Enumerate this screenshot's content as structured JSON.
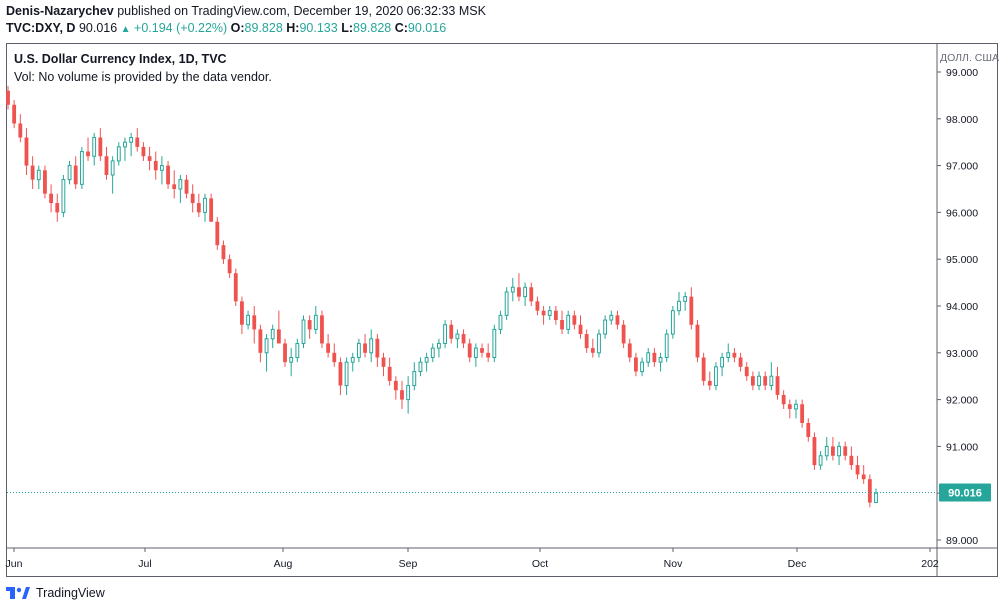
{
  "header": {
    "author": "Denis-Nazarychev",
    "published": "published on TradingView.com, December 19, 2020 06:32:33 MSK",
    "symbol": "TVC:DXY, D",
    "last": "90.016",
    "arrow": "▲",
    "change": "+0.194 (+0.22%)",
    "o_label": "O:",
    "o_value": "89.828",
    "h_label": "H:",
    "h_value": "90.133",
    "l_label": "L:",
    "l_value": "89.828",
    "c_label": "C:",
    "c_value": "90.016"
  },
  "legend": {
    "title": "U.S. Dollar Currency Index, 1D, TVC",
    "volume_note": "Vol: No volume is provided by the data vendor."
  },
  "axis_unit": "ДОЛЛ. США",
  "footer": {
    "brand": "TradingView"
  },
  "colors": {
    "up": "#26a69a",
    "down": "#ef5350",
    "price_line": "#26a69a",
    "label_bg": "#26a69a"
  },
  "chart_data": {
    "type": "candlestick",
    "title": "U.S. Dollar Currency Index, 1D, TVC",
    "ylim": [
      88.9,
      99.4
    ],
    "y_ticks": [
      "89.000",
      "90.000",
      "91.000",
      "92.000",
      "93.000",
      "94.000",
      "95.000",
      "96.000",
      "97.000",
      "98.000",
      "99.000"
    ],
    "x_labels": [
      "Jun",
      "Jul",
      "Aug",
      "Sep",
      "Oct",
      "Nov",
      "Dec",
      "202"
    ],
    "last_price": 90.016,
    "last_price_label": "90.016",
    "ohlc": [
      [
        98.6,
        98.7,
        98.2,
        98.3
      ],
      [
        98.3,
        98.4,
        97.8,
        97.9
      ],
      [
        97.9,
        98.1,
        97.5,
        97.6
      ],
      [
        97.6,
        97.8,
        96.8,
        97.0
      ],
      [
        97.0,
        97.2,
        96.5,
        96.7
      ],
      [
        96.7,
        97.0,
        96.5,
        96.9
      ],
      [
        96.9,
        97.0,
        96.3,
        96.4
      ],
      [
        96.4,
        96.6,
        96.0,
        96.2
      ],
      [
        96.2,
        96.4,
        95.8,
        96.0
      ],
      [
        96.0,
        96.8,
        95.9,
        96.7
      ],
      [
        96.7,
        97.1,
        96.6,
        97.0
      ],
      [
        97.0,
        97.2,
        96.5,
        96.6
      ],
      [
        96.6,
        97.4,
        96.5,
        97.3
      ],
      [
        97.3,
        97.6,
        97.1,
        97.2
      ],
      [
        97.2,
        97.7,
        97.0,
        97.6
      ],
      [
        97.6,
        97.8,
        97.1,
        97.2
      ],
      [
        97.2,
        97.4,
        96.7,
        96.8
      ],
      [
        96.8,
        97.2,
        96.4,
        97.1
      ],
      [
        97.1,
        97.5,
        97.0,
        97.4
      ],
      [
        97.4,
        97.6,
        97.1,
        97.5
      ],
      [
        97.5,
        97.7,
        97.2,
        97.6
      ],
      [
        97.6,
        97.8,
        97.3,
        97.4
      ],
      [
        97.4,
        97.5,
        97.1,
        97.2
      ],
      [
        97.2,
        97.4,
        96.9,
        97.1
      ],
      [
        97.1,
        97.3,
        96.7,
        96.9
      ],
      [
        96.9,
        97.2,
        96.6,
        97.0
      ],
      [
        97.0,
        97.1,
        96.5,
        96.6
      ],
      [
        96.6,
        96.9,
        96.3,
        96.5
      ],
      [
        96.5,
        96.8,
        96.2,
        96.7
      ],
      [
        96.7,
        96.8,
        96.3,
        96.4
      ],
      [
        96.4,
        96.6,
        96.0,
        96.2
      ],
      [
        96.2,
        96.4,
        95.9,
        96.0
      ],
      [
        96.0,
        96.4,
        95.8,
        96.3
      ],
      [
        96.3,
        96.4,
        95.8,
        95.8
      ],
      [
        95.8,
        95.9,
        95.2,
        95.3
      ],
      [
        95.3,
        95.4,
        94.9,
        95.0
      ],
      [
        95.0,
        95.1,
        94.6,
        94.7
      ],
      [
        94.7,
        94.8,
        94.0,
        94.1
      ],
      [
        94.1,
        94.2,
        93.4,
        93.6
      ],
      [
        93.6,
        93.9,
        93.5,
        93.8
      ],
      [
        93.8,
        94.0,
        93.2,
        93.5
      ],
      [
        93.5,
        93.6,
        92.8,
        93.0
      ],
      [
        93.0,
        93.4,
        92.6,
        93.3
      ],
      [
        93.3,
        93.6,
        93.1,
        93.5
      ],
      [
        93.5,
        93.9,
        93.2,
        93.2
      ],
      [
        93.2,
        93.3,
        92.7,
        92.8
      ],
      [
        92.8,
        93.1,
        92.5,
        92.9
      ],
      [
        92.9,
        93.3,
        92.8,
        93.2
      ],
      [
        93.2,
        93.8,
        93.1,
        93.7
      ],
      [
        93.7,
        93.8,
        93.3,
        93.5
      ],
      [
        93.5,
        94.0,
        93.4,
        93.8
      ],
      [
        93.8,
        93.9,
        93.1,
        93.2
      ],
      [
        93.2,
        93.4,
        92.9,
        93.0
      ],
      [
        93.0,
        93.2,
        92.7,
        92.8
      ],
      [
        92.8,
        92.9,
        92.1,
        92.3
      ],
      [
        92.3,
        92.9,
        92.1,
        92.8
      ],
      [
        92.8,
        93.0,
        92.6,
        92.9
      ],
      [
        92.9,
        93.3,
        92.8,
        93.2
      ],
      [
        93.2,
        93.4,
        92.9,
        93.0
      ],
      [
        93.0,
        93.5,
        92.8,
        93.3
      ],
      [
        93.3,
        93.4,
        92.7,
        92.9
      ],
      [
        92.9,
        93.0,
        92.5,
        92.7
      ],
      [
        92.7,
        92.9,
        92.3,
        92.4
      ],
      [
        92.4,
        92.5,
        92.0,
        92.2
      ],
      [
        92.2,
        92.4,
        91.8,
        92.0
      ],
      [
        92.0,
        92.5,
        91.7,
        92.3
      ],
      [
        92.3,
        92.8,
        92.2,
        92.6
      ],
      [
        92.6,
        92.9,
        92.5,
        92.8
      ],
      [
        92.8,
        93.0,
        92.6,
        92.9
      ],
      [
        92.9,
        93.2,
        92.8,
        93.1
      ],
      [
        93.1,
        93.3,
        92.9,
        93.2
      ],
      [
        93.2,
        93.7,
        93.1,
        93.6
      ],
      [
        93.6,
        93.7,
        93.2,
        93.3
      ],
      [
        93.3,
        93.5,
        93.1,
        93.4
      ],
      [
        93.4,
        93.5,
        93.1,
        93.2
      ],
      [
        93.2,
        93.3,
        92.8,
        92.9
      ],
      [
        92.9,
        93.2,
        92.7,
        93.1
      ],
      [
        93.1,
        93.2,
        92.9,
        93.0
      ],
      [
        93.0,
        93.2,
        92.8,
        92.9
      ],
      [
        92.9,
        93.6,
        92.8,
        93.5
      ],
      [
        93.5,
        93.9,
        93.4,
        93.8
      ],
      [
        93.8,
        94.4,
        93.7,
        94.3
      ],
      [
        94.3,
        94.6,
        94.1,
        94.4
      ],
      [
        94.4,
        94.7,
        94.1,
        94.2
      ],
      [
        94.2,
        94.5,
        94.0,
        94.4
      ],
      [
        94.4,
        94.5,
        94.0,
        94.1
      ],
      [
        94.1,
        94.2,
        93.8,
        93.9
      ],
      [
        93.9,
        94.0,
        93.6,
        93.8
      ],
      [
        93.8,
        94.0,
        93.7,
        93.9
      ],
      [
        93.9,
        94.0,
        93.6,
        93.7
      ],
      [
        93.7,
        93.9,
        93.4,
        93.5
      ],
      [
        93.5,
        93.9,
        93.4,
        93.8
      ],
      [
        93.8,
        93.9,
        93.5,
        93.6
      ],
      [
        93.6,
        93.8,
        93.3,
        93.4
      ],
      [
        93.4,
        93.5,
        93.0,
        93.1
      ],
      [
        93.1,
        93.3,
        92.9,
        93.0
      ],
      [
        93.0,
        93.5,
        92.9,
        93.4
      ],
      [
        93.4,
        93.8,
        93.3,
        93.7
      ],
      [
        93.7,
        93.9,
        93.6,
        93.8
      ],
      [
        93.8,
        93.9,
        93.5,
        93.6
      ],
      [
        93.6,
        93.7,
        93.1,
        93.2
      ],
      [
        93.2,
        93.3,
        92.8,
        92.9
      ],
      [
        92.9,
        93.0,
        92.5,
        92.6
      ],
      [
        92.6,
        92.9,
        92.5,
        92.8
      ],
      [
        92.8,
        93.1,
        92.7,
        93.0
      ],
      [
        93.0,
        93.1,
        92.7,
        92.8
      ],
      [
        92.8,
        93.0,
        92.6,
        92.9
      ],
      [
        92.9,
        93.5,
        92.8,
        93.4
      ],
      [
        93.4,
        94.0,
        93.3,
        93.9
      ],
      [
        93.9,
        94.3,
        93.8,
        94.1
      ],
      [
        94.1,
        94.3,
        93.9,
        94.2
      ],
      [
        94.2,
        94.4,
        93.5,
        93.6
      ],
      [
        93.6,
        93.7,
        92.8,
        92.9
      ],
      [
        92.9,
        93.0,
        92.3,
        92.4
      ],
      [
        92.4,
        92.6,
        92.2,
        92.3
      ],
      [
        92.3,
        92.8,
        92.2,
        92.7
      ],
      [
        92.7,
        93.0,
        92.5,
        92.9
      ],
      [
        92.9,
        93.2,
        92.8,
        93.0
      ],
      [
        93.0,
        93.1,
        92.8,
        92.9
      ],
      [
        92.9,
        93.0,
        92.6,
        92.7
      ],
      [
        92.7,
        92.8,
        92.4,
        92.5
      ],
      [
        92.5,
        92.6,
        92.2,
        92.3
      ],
      [
        92.3,
        92.6,
        92.2,
        92.5
      ],
      [
        92.5,
        92.6,
        92.2,
        92.3
      ],
      [
        92.3,
        92.8,
        92.2,
        92.5
      ],
      [
        92.5,
        92.7,
        92.0,
        92.1
      ],
      [
        92.1,
        92.2,
        91.8,
        91.9
      ],
      [
        91.9,
        92.0,
        91.6,
        91.8
      ],
      [
        91.8,
        92.0,
        91.6,
        91.9
      ],
      [
        91.9,
        92.0,
        91.4,
        91.5
      ],
      [
        91.5,
        91.6,
        91.1,
        91.2
      ],
      [
        91.2,
        91.3,
        90.5,
        90.6
      ],
      [
        90.6,
        90.9,
        90.5,
        90.8
      ],
      [
        90.8,
        91.2,
        90.7,
        91.0
      ],
      [
        91.0,
        91.2,
        90.7,
        90.8
      ],
      [
        90.8,
        91.1,
        90.6,
        91.0
      ],
      [
        91.0,
        91.1,
        90.7,
        90.8
      ],
      [
        90.8,
        91.0,
        90.5,
        90.6
      ],
      [
        90.6,
        90.8,
        90.3,
        90.4
      ],
      [
        90.4,
        90.6,
        90.2,
        90.3
      ],
      [
        90.3,
        90.4,
        89.7,
        89.8
      ],
      [
        89.8,
        90.1,
        89.8,
        90.0
      ]
    ]
  }
}
